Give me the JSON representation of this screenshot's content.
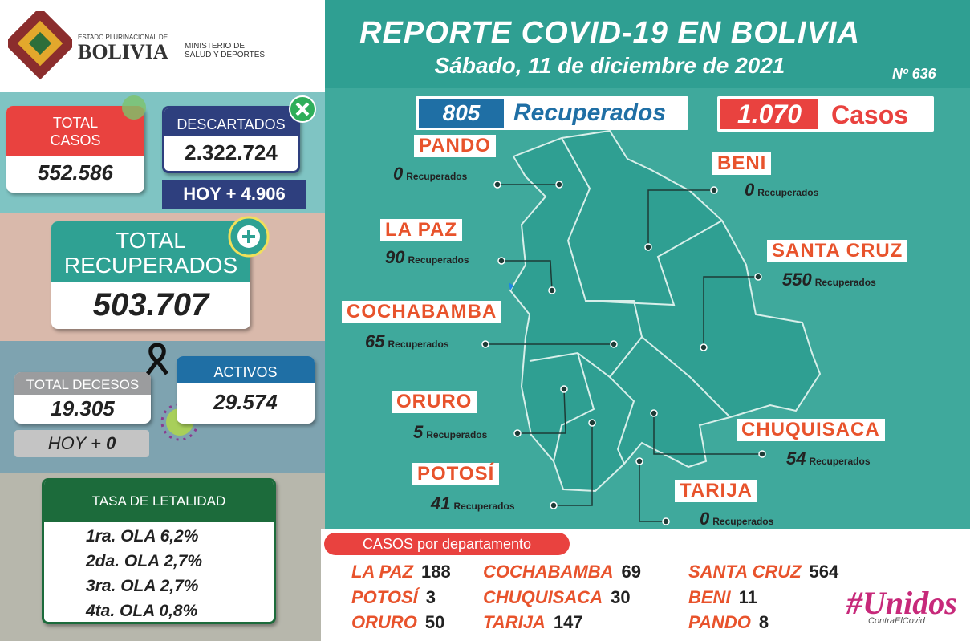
{
  "header": {
    "gov_line1": "ESTADO PLURINACIONAL DE",
    "gov_line2": "BOLIVIA",
    "ministry1": "MINISTERIO DE",
    "ministry2": "SALUD Y DEPORTES",
    "title": "REPORTE COVID-19 EN BOLIVIA",
    "date": "Sábado, 11 de diciembre de 2021",
    "number": "Nº 636"
  },
  "stats": {
    "total_casos": {
      "label_1": "TOTAL",
      "label_2": "CASOS",
      "value": "552.586"
    },
    "descartados": {
      "label": "DESCARTADOS",
      "value": "2.322.724",
      "today_label": "HOY +",
      "today": "4.906"
    },
    "recuperados": {
      "label_1": "TOTAL",
      "label_2": "RECUPERADOS",
      "value": "503.707"
    },
    "decesos": {
      "label": "TOTAL DECESOS",
      "value": "19.305",
      "today_label": "HOY +",
      "today": "0"
    },
    "activos": {
      "label": "ACTIVOS",
      "value": "29.574"
    }
  },
  "letalidad": {
    "title": "TASA DE LETALIDAD",
    "rows": [
      "1ra. OLA 6,2%",
      "2da. OLA 2,7%",
      "3ra. OLA 2,7%",
      "4ta. OLA 0,8%"
    ]
  },
  "daily": {
    "recuperados_value": "805",
    "recuperados_label": "Recuperados",
    "casos_value": "1.070",
    "casos_label": "Casos"
  },
  "map": {
    "unit": "Recuperados",
    "departments": [
      {
        "name": "PANDO",
        "value": "0"
      },
      {
        "name": "BENI",
        "value": "0"
      },
      {
        "name": "LA PAZ",
        "value": "90"
      },
      {
        "name": "SANTA CRUZ",
        "value": "550"
      },
      {
        "name": "COCHABAMBA",
        "value": "65"
      },
      {
        "name": "ORURO",
        "value": "5"
      },
      {
        "name": "CHUQUISACA",
        "value": "54"
      },
      {
        "name": "POTOSÍ",
        "value": "41"
      },
      {
        "name": "TARIJA",
        "value": "0"
      }
    ]
  },
  "cases_by_department": {
    "title": "CASOS por departamento",
    "items": [
      {
        "name": "LA PAZ",
        "value": "188"
      },
      {
        "name": "POTOSÍ",
        "value": "3"
      },
      {
        "name": "ORURO",
        "value": "50"
      },
      {
        "name": "COCHABAMBA",
        "value": "69"
      },
      {
        "name": "CHUQUISACA",
        "value": "30"
      },
      {
        "name": "TARIJA",
        "value": "147"
      },
      {
        "name": "SANTA CRUZ",
        "value": "564"
      },
      {
        "name": "BENI",
        "value": "11"
      },
      {
        "name": "PANDO",
        "value": "8"
      }
    ]
  },
  "footer": {
    "tag": "#Unidos",
    "sub": "ContraElCovid"
  }
}
